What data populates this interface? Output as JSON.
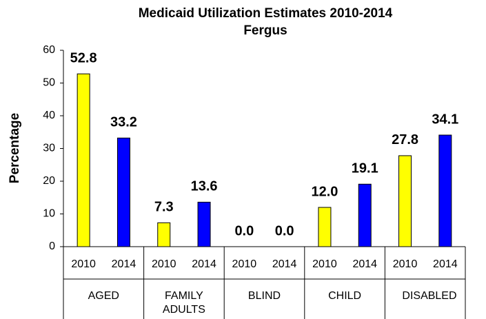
{
  "chart_data": {
    "type": "grouped_bar",
    "title": "Medicaid Utilization Estimates 2010-2014",
    "subtitle": "Fergus",
    "ylabel": "Percentage",
    "ylim": [
      0,
      60
    ],
    "yticks": [
      0,
      10,
      20,
      30,
      40,
      50,
      60
    ],
    "colors": [
      "#ffff00",
      "#0000ff"
    ],
    "groups": [
      {
        "name": "AGED",
        "categories": [
          "2010",
          "2014"
        ],
        "values": [
          52.8,
          33.2
        ],
        "value_labels": [
          "52.8",
          "33.2"
        ]
      },
      {
        "name": "FAMILY ADULTS",
        "categories": [
          "2010",
          "2014"
        ],
        "values": [
          7.3,
          13.6
        ],
        "value_labels": [
          "7.3",
          "13.6"
        ]
      },
      {
        "name": "BLIND",
        "categories": [
          "2010",
          "2014"
        ],
        "values": [
          0,
          0
        ],
        "value_labels": [
          "0.0",
          "0.0"
        ]
      },
      {
        "name": "CHILD",
        "categories": [
          "2010",
          "2014"
        ],
        "values": [
          12,
          19.1
        ],
        "value_labels": [
          "12.0",
          "19.1"
        ]
      },
      {
        "name": "DISABLED",
        "categories": [
          "2010",
          "2014"
        ],
        "values": [
          27.8,
          34.1
        ],
        "value_labels": [
          "27.8",
          "34.1"
        ]
      }
    ]
  }
}
